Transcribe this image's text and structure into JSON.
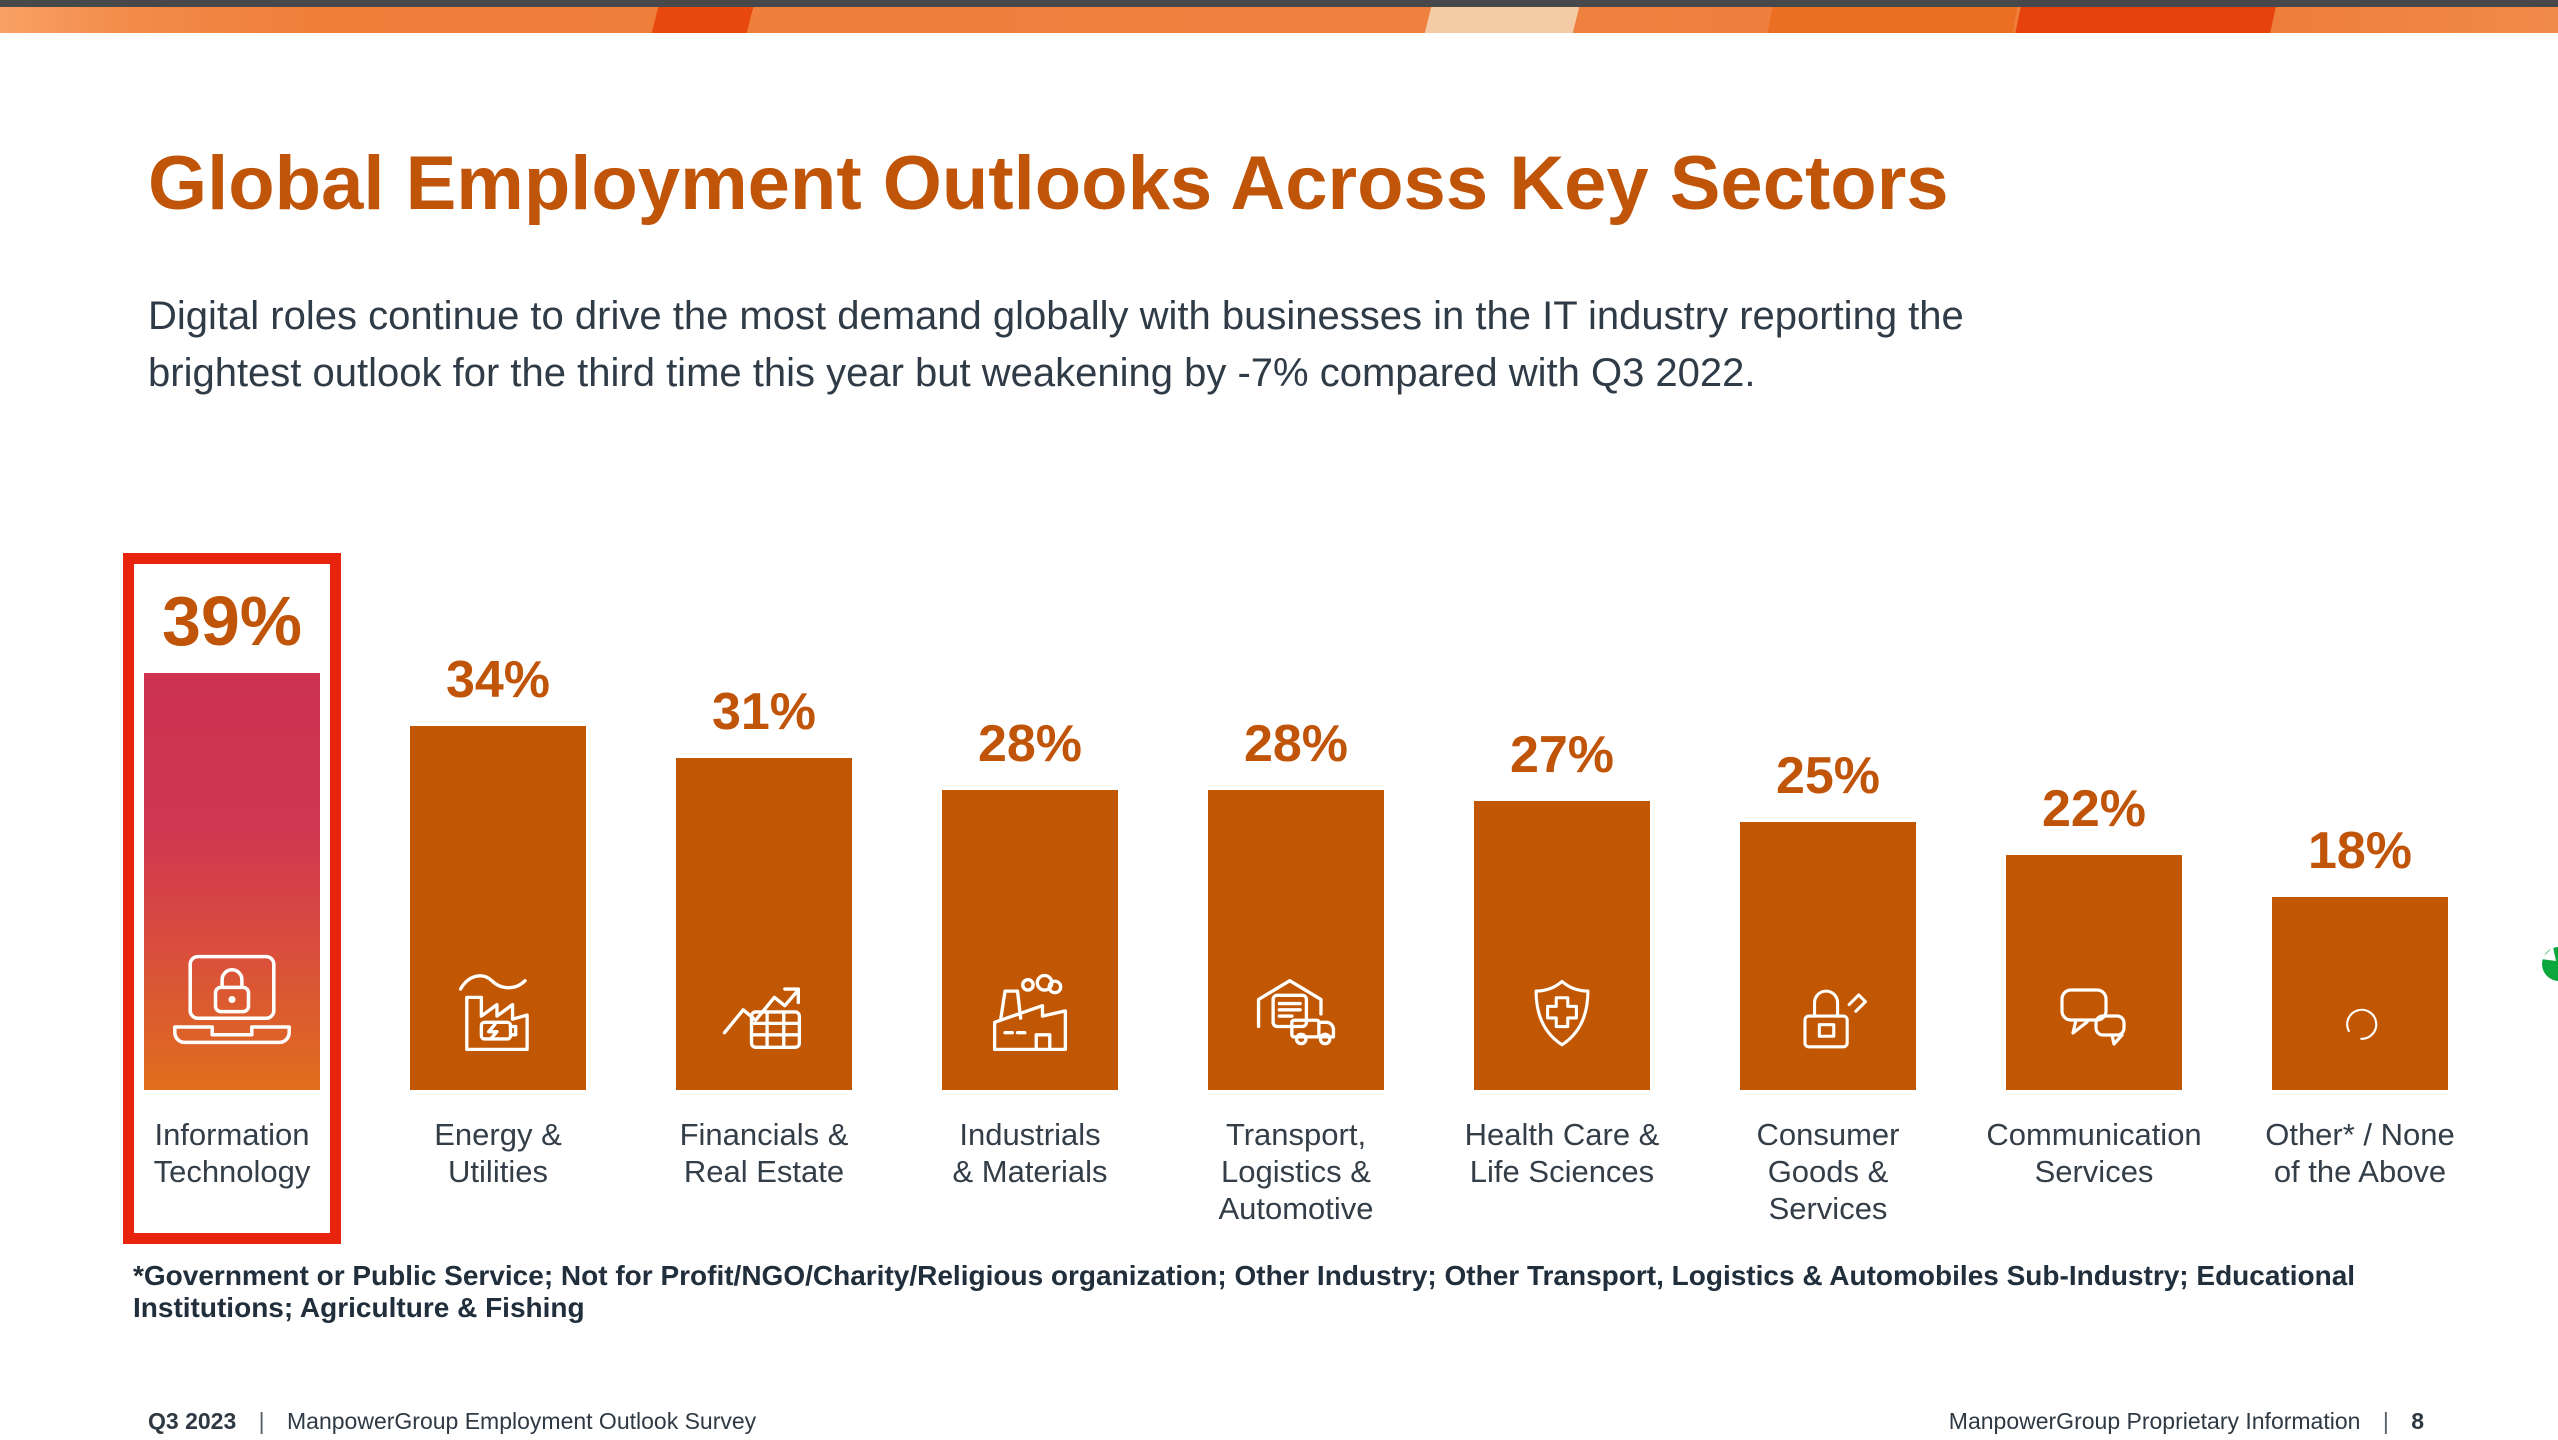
{
  "title": "Global Employment Outlooks Across Key Sectors",
  "subtitle_lines": [
    "Digital roles continue to drive the most demand globally with businesses in the IT industry reporting the",
    "brightest outlook for the third time this year but weakening by -7% compared with Q3 2022."
  ],
  "chart_data": {
    "type": "bar",
    "title": "Global Employment Outlooks Across Key Sectors",
    "unit": "%",
    "ylim": [
      0,
      45
    ],
    "grid": false,
    "legend": "none",
    "value_labels_position": "above-bars",
    "categories": [
      "Information Technology",
      "Energy & Utilities",
      "Financials & Real Estate",
      "Industrials & Materials",
      "Transport, Logistics & Automotive",
      "Health Care & Life Sciences",
      "Consumer Goods & Services",
      "Communication Services",
      "Other* / None of the Above"
    ],
    "values": [
      39,
      34,
      31,
      28,
      28,
      27,
      25,
      22,
      18
    ],
    "highlighted_category": "Information Technology",
    "bars": [
      {
        "id": "information-technology",
        "value": 39,
        "value_label": "39%",
        "label_lines": [
          "Information",
          "Technology"
        ],
        "icon": "laptop-lock-icon",
        "highlighted": true
      },
      {
        "id": "energy-utilities",
        "value": 34,
        "value_label": "34%",
        "label_lines": [
          "Energy &",
          "Utilities"
        ],
        "icon": "factory-battery-icon",
        "highlighted": false
      },
      {
        "id": "financials-real-estate",
        "value": 31,
        "value_label": "31%",
        "label_lines": [
          "Financials &",
          "Real Estate"
        ],
        "icon": "chart-growth-icon",
        "highlighted": false
      },
      {
        "id": "industrials-materials",
        "value": 28,
        "value_label": "28%",
        "label_lines": [
          "Industrials",
          "& Materials"
        ],
        "icon": "factory-smoke-icon",
        "highlighted": false
      },
      {
        "id": "transport-logistics-automotive",
        "value": 28,
        "value_label": "28%",
        "label_lines": [
          "Transport,",
          "Logistics &",
          "Automotive"
        ],
        "icon": "warehouse-truck-icon",
        "highlighted": false
      },
      {
        "id": "health-care-life-sciences",
        "value": 27,
        "value_label": "27%",
        "label_lines": [
          "Health Care &",
          "Life Sciences"
        ],
        "icon": "shield-cross-icon",
        "highlighted": false
      },
      {
        "id": "consumer-goods-services",
        "value": 25,
        "value_label": "25%",
        "label_lines": [
          "Consumer",
          "Goods &",
          "Services"
        ],
        "icon": "shopping-bag-icon",
        "highlighted": false
      },
      {
        "id": "communication-services",
        "value": 22,
        "value_label": "22%",
        "label_lines": [
          "Communication",
          "Services"
        ],
        "icon": "chat-bubbles-icon",
        "highlighted": false
      },
      {
        "id": "other-none-of-the-above",
        "value": 18,
        "value_label": "18%",
        "label_lines": [
          "Other*  / None",
          "of the Above"
        ],
        "icon": "open-circle-icon",
        "highlighted": false
      }
    ]
  },
  "footnote": "*Government or Public Service; Not for Profit/NGO/Charity/Religious  organization;  Other Industry;  Other Transport, Logistics & Automobiles Sub-Industry;  Educational  Institutions;  Agriculture & Fishing",
  "footer": {
    "left_bold": "Q3 2023",
    "left_sep": "|",
    "left_text": "ManpowerGroup Employment Outlook Survey",
    "right_text": "ManpowerGroup Proprietary Information",
    "right_sep": "|",
    "page_number": "8"
  },
  "colors": {
    "accent_orange": "#C05408",
    "bar_fill": "#C15702",
    "highlight_border": "#E8230E",
    "highlight_gradient_top": "#CE3450",
    "highlight_gradient_bottom": "#E06E1D",
    "top_strip_gray": "#47484A",
    "ribbon_orange": "#F07E39",
    "ribbon_red": "#E8490E",
    "ribbon_peach": "#F3CBA5",
    "text_dark": "#333E48",
    "green_badge": "#0CA73C"
  }
}
